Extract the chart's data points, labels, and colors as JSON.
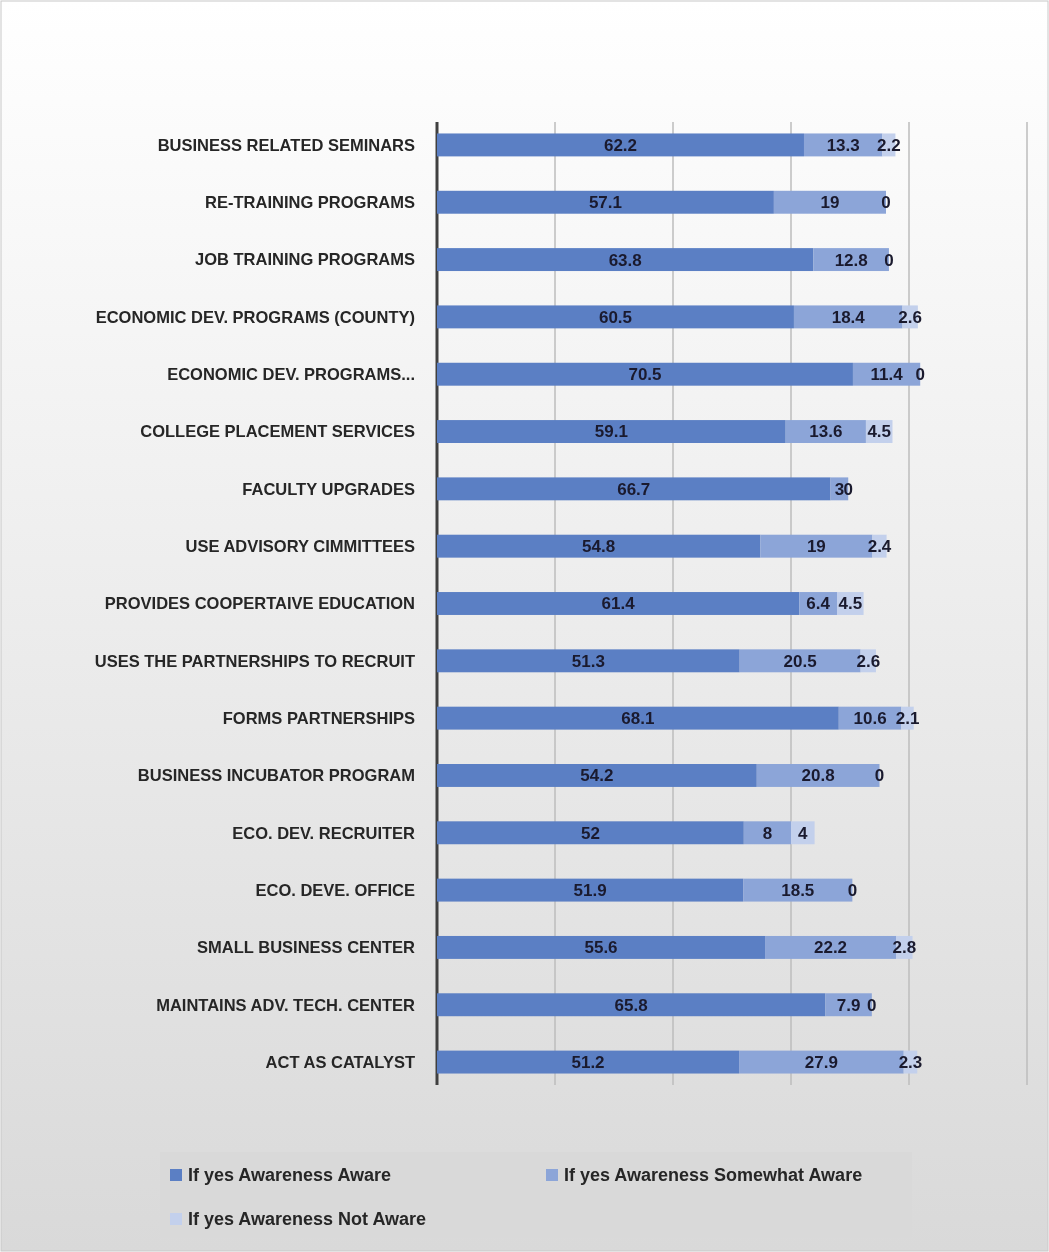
{
  "chart_data": {
    "type": "bar",
    "orientation": "horizontal",
    "stacked": true,
    "data_labels": true,
    "grid": "x",
    "legend": "bottom",
    "categories": [
      "BUSINESS RELATED SEMINARS",
      "RE-TRAINING PROGRAMS",
      "JOB TRAINING PROGRAMS",
      "ECONOMIC DEV. PROGRAMS (COUNTY)",
      "ECONOMIC DEV. PROGRAMS...",
      "COLLEGE PLACEMENT SERVICES",
      "FACULTY UPGRADES",
      "USE ADVISORY CIMMITTEES",
      "PROVIDES COOPERTAIVE EDUCATION",
      "USES THE  PARTNERSHIPS TO RECRUIT",
      "FORMS PARTNERSHIPS",
      "BUSINESS INCUBATOR PROGRAM",
      "ECO. DEV. RECRUITER",
      "ECO. DEVE. OFFICE",
      "SMALL BUSINESS CENTER",
      "MAINTAINS ADV. TECH. CENTER",
      "ACT AS CATALYST"
    ],
    "xlim": [
      0,
      100
    ],
    "xticks": [
      {
        "value": 0,
        "label": null
      },
      {
        "value": 20,
        "label": null
      },
      {
        "value": 40,
        "label": null
      },
      {
        "value": 60,
        "label": null
      },
      {
        "value": 80,
        "label": null
      },
      {
        "value": 100,
        "label": null
      }
    ],
    "series": [
      {
        "name": "If yes Awareness Aware",
        "color": "#5b7fc4",
        "values": [
          62.2,
          57.1,
          63.8,
          60.5,
          70.5,
          59.1,
          66.7,
          54.8,
          61.4,
          51.3,
          68.1,
          54.2,
          52,
          51.9,
          55.6,
          65.8,
          51.2
        ]
      },
      {
        "name": "If yes Awareness Somewhat Aware",
        "color": "#8ca5d8",
        "values": [
          13.3,
          19,
          12.8,
          18.4,
          11.4,
          13.6,
          3,
          19,
          6.4,
          20.5,
          10.6,
          20.8,
          8,
          18.5,
          22.2,
          7.9,
          27.9
        ]
      },
      {
        "name": "If yes Awareness Not Aware",
        "color": "#c3d0ec",
        "values": [
          2.2,
          0,
          0,
          2.6,
          0,
          4.5,
          0,
          2.4,
          4.5,
          2.6,
          2.1,
          0,
          4,
          0,
          2.8,
          0,
          2.3
        ]
      }
    ]
  }
}
